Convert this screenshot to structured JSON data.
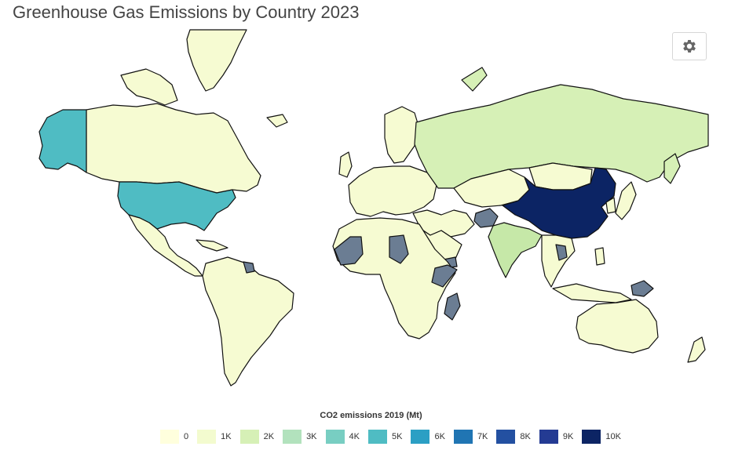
{
  "title": "Greenhouse Gas Emissions by Country 2023",
  "settings": {
    "icon": "gear-icon"
  },
  "legend": {
    "title": "CO2 emissions 2019 (Mt)",
    "items": [
      {
        "label": "0",
        "color": "#ffffdd"
      },
      {
        "label": "1K",
        "color": "#f3fbcf"
      },
      {
        "label": "2K",
        "color": "#d6f0b6"
      },
      {
        "label": "3K",
        "color": "#b2e2bd"
      },
      {
        "label": "4K",
        "color": "#78cec2"
      },
      {
        "label": "5K",
        "color": "#4fbcc3"
      },
      {
        "label": "6K",
        "color": "#2b9fc4"
      },
      {
        "label": "7K",
        "color": "#2075b3"
      },
      {
        "label": "8K",
        "color": "#2350a1"
      },
      {
        "label": "9K",
        "color": "#243b93"
      },
      {
        "label": "10K",
        "color": "#0c2464"
      }
    ]
  },
  "colors": {
    "no_data": "#6b7d93",
    "low": "#f6fbd2",
    "russia": "#d6f0b6",
    "india": "#c6e8a8",
    "usa": "#4fbcc3",
    "china": "#0c2464"
  }
}
